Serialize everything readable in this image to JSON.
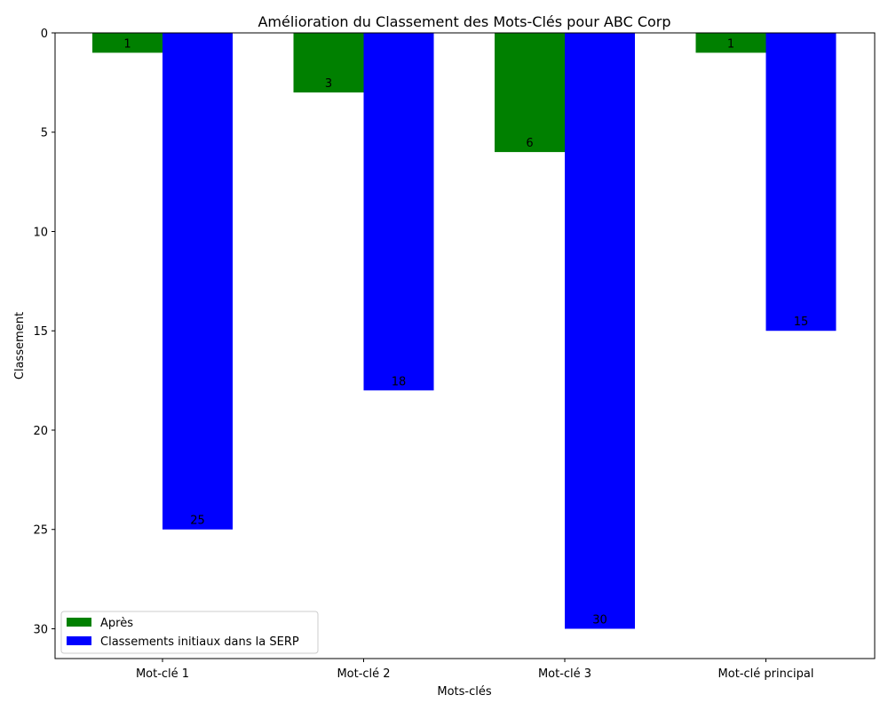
{
  "chart_data": {
    "type": "bar",
    "title": "Amélioration du Classement des Mots-Clés pour ABC Corp",
    "xlabel": "Mots-clés",
    "ylabel": "Classement",
    "categories": [
      "Mot-clé 1",
      "Mot-clé 2",
      "Mot-clé 3",
      "Mot-clé principal"
    ],
    "series": [
      {
        "name": "Après",
        "values": [
          1,
          3,
          6,
          1
        ],
        "color": "#008000"
      },
      {
        "name": "Classements initiaux dans la SERP",
        "values": [
          25,
          18,
          30,
          15
        ],
        "color": "#0000ff"
      }
    ],
    "ylim": [
      0,
      31.5
    ],
    "y_inverted": true,
    "yticks": [
      0,
      5,
      10,
      15,
      20,
      25,
      30
    ],
    "grid": false,
    "legend_position": "bottom-left"
  }
}
